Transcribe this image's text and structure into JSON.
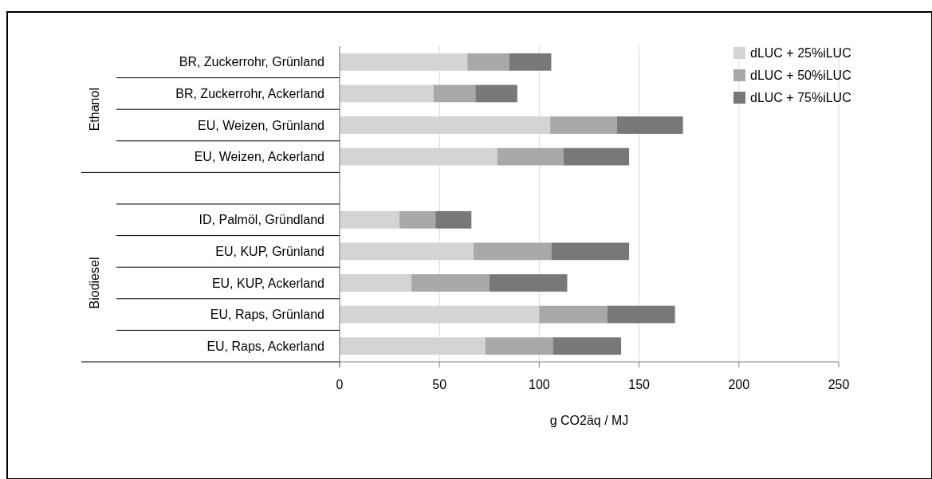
{
  "chart_data": {
    "type": "bar",
    "orientation": "horizontal",
    "stacked": true,
    "categories": [
      "BR, Zuckerrohr, Grünland",
      "BR, Zuckerrohr, Ackerland",
      "EU, Weizen, Grünland",
      "EU, Weizen, Ackerland",
      null,
      "ID, Palmöl, Gründland",
      "EU, KUP, Grünland",
      "EU, KUP, Ackerland",
      "EU, Raps, Grünland",
      "EU, Raps, Ackerland"
    ],
    "series": [
      {
        "name": "dLUC + 25%iLUC",
        "color": "#d4d4d4",
        "values": [
          64,
          47,
          105.5,
          79,
          null,
          30,
          67,
          36,
          100,
          73
        ]
      },
      {
        "name": "dLUC + 50%iLUC",
        "color": "#a8a8a8",
        "values": [
          21,
          21,
          33.5,
          33,
          null,
          18,
          39,
          39,
          34,
          34
        ]
      },
      {
        "name": "dLUC + 75%iLUC",
        "color": "#787878",
        "values": [
          21,
          21,
          33,
          33,
          null,
          18,
          39,
          39,
          34,
          34
        ]
      }
    ],
    "xlim": [
      0,
      250
    ],
    "xticks": [
      0,
      50,
      100,
      150,
      200,
      250
    ],
    "xlabel": "g CO2äq / MJ",
    "annotations": [
      "Ethanol",
      "Biodiesel"
    ],
    "grid": "x",
    "legend": "top right"
  }
}
